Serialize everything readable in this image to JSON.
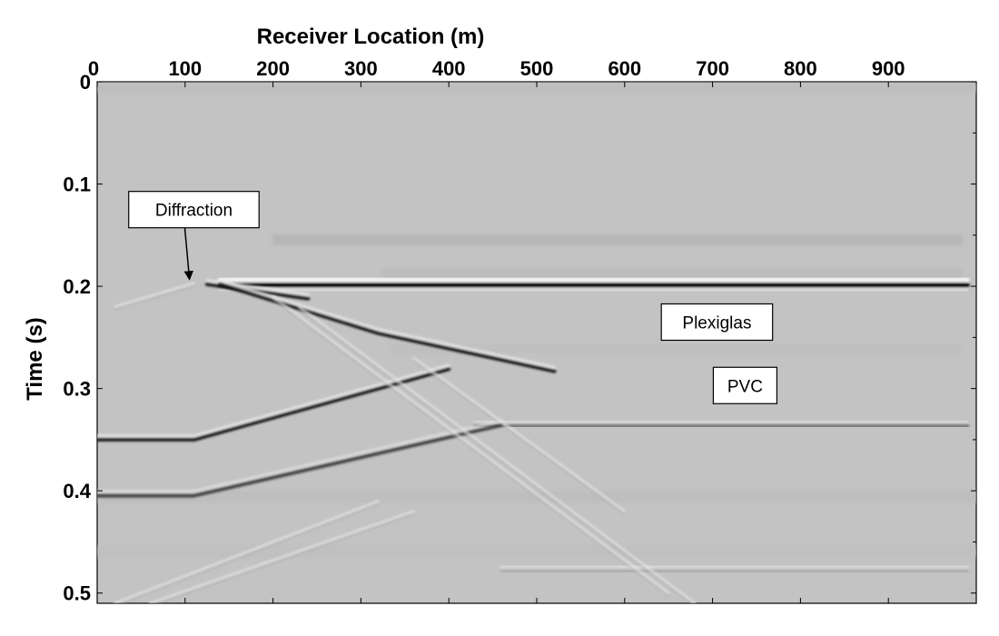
{
  "chart_data": {
    "type": "heatmap",
    "subtype": "seismic-section",
    "xlabel": "Receiver Location  (m)",
    "ylabel": "Time  (s)",
    "xlim": [
      0,
      1000
    ],
    "ylim": [
      0,
      0.51
    ],
    "x_axis_position": "top",
    "y_inverted": true,
    "grid": false,
    "colormap": "grayscale",
    "x_ticks": [
      0,
      100,
      200,
      300,
      400,
      500,
      600,
      700,
      800,
      900
    ],
    "x_tick_labels": [
      "0",
      "100",
      "200",
      "300",
      "400",
      "500",
      "600",
      "700",
      "800",
      "900"
    ],
    "y_ticks": [
      0,
      0.1,
      0.2,
      0.3,
      0.4,
      0.5
    ],
    "y_tick_labels": [
      "0",
      "0.1",
      "0.2",
      "0.3",
      "0.4",
      "0.5"
    ],
    "events": [
      {
        "id": "plexiglas-top",
        "points": [
          [
            140,
            0.197
          ],
          [
            990,
            0.197
          ]
        ],
        "polarity": "black-white"
      },
      {
        "id": "plexiglas-top-onset",
        "points": [
          [
            125,
            0.197
          ],
          [
            240,
            0.211
          ]
        ],
        "polarity": "black"
      },
      {
        "id": "linear-down",
        "points": [
          [
            140,
            0.197
          ],
          [
            320,
            0.245
          ],
          [
            520,
            0.282
          ]
        ],
        "polarity": "black"
      },
      {
        "id": "pvc-rise",
        "points": [
          [
            0,
            0.349
          ],
          [
            110,
            0.349
          ],
          [
            400,
            0.28
          ]
        ],
        "polarity": "black"
      },
      {
        "id": "pvc-flat",
        "points": [
          [
            430,
            0.335
          ],
          [
            990,
            0.335
          ]
        ],
        "polarity": "gray"
      },
      {
        "id": "lower-rise",
        "points": [
          [
            0,
            0.403
          ],
          [
            110,
            0.403
          ],
          [
            460,
            0.334
          ]
        ],
        "polarity": "dark-gray"
      },
      {
        "id": "deep-flat",
        "points": [
          [
            460,
            0.476
          ],
          [
            990,
            0.476
          ]
        ],
        "polarity": "light-gray"
      },
      {
        "id": "diffraction-tail-left",
        "points": [
          [
            110,
            0.197
          ],
          [
            20,
            0.22
          ]
        ],
        "polarity": "light"
      },
      {
        "id": "crossing-a",
        "points": [
          [
            200,
            0.21
          ],
          [
            650,
            0.5
          ]
        ],
        "polarity": "light"
      },
      {
        "id": "crossing-b",
        "points": [
          [
            230,
            0.22
          ],
          [
            680,
            0.51
          ]
        ],
        "polarity": "light"
      },
      {
        "id": "crossing-c",
        "points": [
          [
            360,
            0.27
          ],
          [
            600,
            0.42
          ]
        ],
        "polarity": "light"
      },
      {
        "id": "rising-low-a",
        "points": [
          [
            20,
            0.51
          ],
          [
            320,
            0.41
          ]
        ],
        "polarity": "light"
      },
      {
        "id": "rising-low-b",
        "points": [
          [
            60,
            0.51
          ],
          [
            360,
            0.42
          ]
        ],
        "polarity": "light"
      }
    ],
    "annotations": [
      {
        "text": "Diffraction",
        "at": [
          110,
          0.125
        ],
        "arrow_to": [
          105,
          0.197
        ]
      },
      {
        "text": "Plexiglas",
        "at": [
          705,
          0.235
        ]
      },
      {
        "text": "PVC",
        "at": [
          737,
          0.297
        ]
      }
    ]
  }
}
